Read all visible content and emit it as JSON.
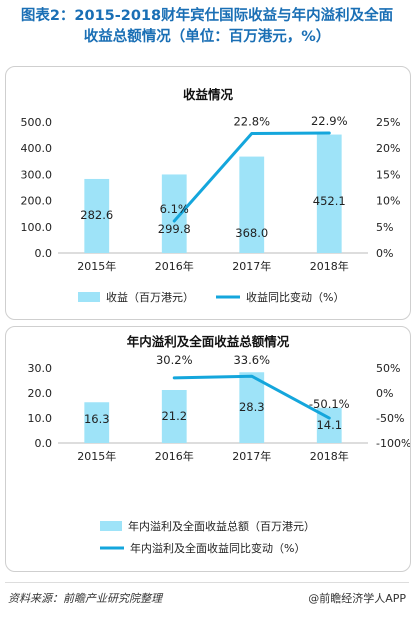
{
  "page": {
    "title_line1": "图表2：2015-2018财年宾仕国际收益与年内溢利及全面",
    "title_line2": "收益总额情况（单位：百万港元，%）",
    "source": "资料来源：前瞻产业研究院整理",
    "brand": "@前瞻经济学人APP"
  },
  "colors": {
    "bar": "#9ee3f8",
    "line": "#14a6dc",
    "title": "#1a6fb5"
  },
  "chart_data": [
    {
      "type": "bar",
      "title": "收益情况",
      "categories": [
        "2015年",
        "2016年",
        "2017年",
        "2018年"
      ],
      "ylim": [
        0,
        500
      ],
      "yticks": [
        0,
        100,
        200,
        300,
        400,
        500
      ],
      "ytick_labels": [
        "0.0",
        "100.0",
        "200.0",
        "300.0",
        "400.0",
        "500.0"
      ],
      "y2lim": [
        0,
        25
      ],
      "y2ticks": [
        0,
        5,
        10,
        15,
        20,
        25
      ],
      "y2tick_labels": [
        "0%",
        "5%",
        "10%",
        "15%",
        "20%",
        "25%"
      ],
      "legend_position": "bottom",
      "series": [
        {
          "name": "收益（百万港元）",
          "kind": "bar",
          "axis": "left",
          "values": [
            282.6,
            299.8,
            368.0,
            452.1
          ],
          "labels": [
            "282.6",
            "299.8",
            "368.0",
            "452.1"
          ]
        },
        {
          "name": "收益同比变动（%）",
          "kind": "line",
          "axis": "right",
          "values": [
            null,
            6.1,
            22.8,
            22.9
          ],
          "labels": [
            "",
            "6.1%",
            "22.8%",
            "22.9%"
          ]
        }
      ]
    },
    {
      "type": "bar",
      "title": "年内溢利及全面收益总额情况",
      "categories": [
        "2015年",
        "2016年",
        "2017年",
        "2018年"
      ],
      "ylim": [
        0,
        30
      ],
      "yticks": [
        0,
        10,
        20,
        30
      ],
      "ytick_labels": [
        "0.0",
        "10.0",
        "20.0",
        "30.0"
      ],
      "y2lim": [
        -100,
        50
      ],
      "y2ticks": [
        -100,
        -50,
        0,
        50
      ],
      "y2tick_labels": [
        "-100%",
        "-50%",
        "0%",
        "50%"
      ],
      "legend_position": "bottom",
      "series": [
        {
          "name": "年内溢利及全面收益总额（百万港元）",
          "kind": "bar",
          "axis": "left",
          "values": [
            16.3,
            21.2,
            28.3,
            14.1
          ],
          "labels": [
            "16.3",
            "21.2",
            "28.3",
            "14.1"
          ]
        },
        {
          "name": "年内溢利及全面收益同比变动（%）",
          "kind": "line",
          "axis": "right",
          "values": [
            null,
            30.2,
            33.6,
            -50.1
          ],
          "labels": [
            "",
            "30.2%",
            "33.6%",
            "-50.1%"
          ]
        }
      ]
    }
  ]
}
